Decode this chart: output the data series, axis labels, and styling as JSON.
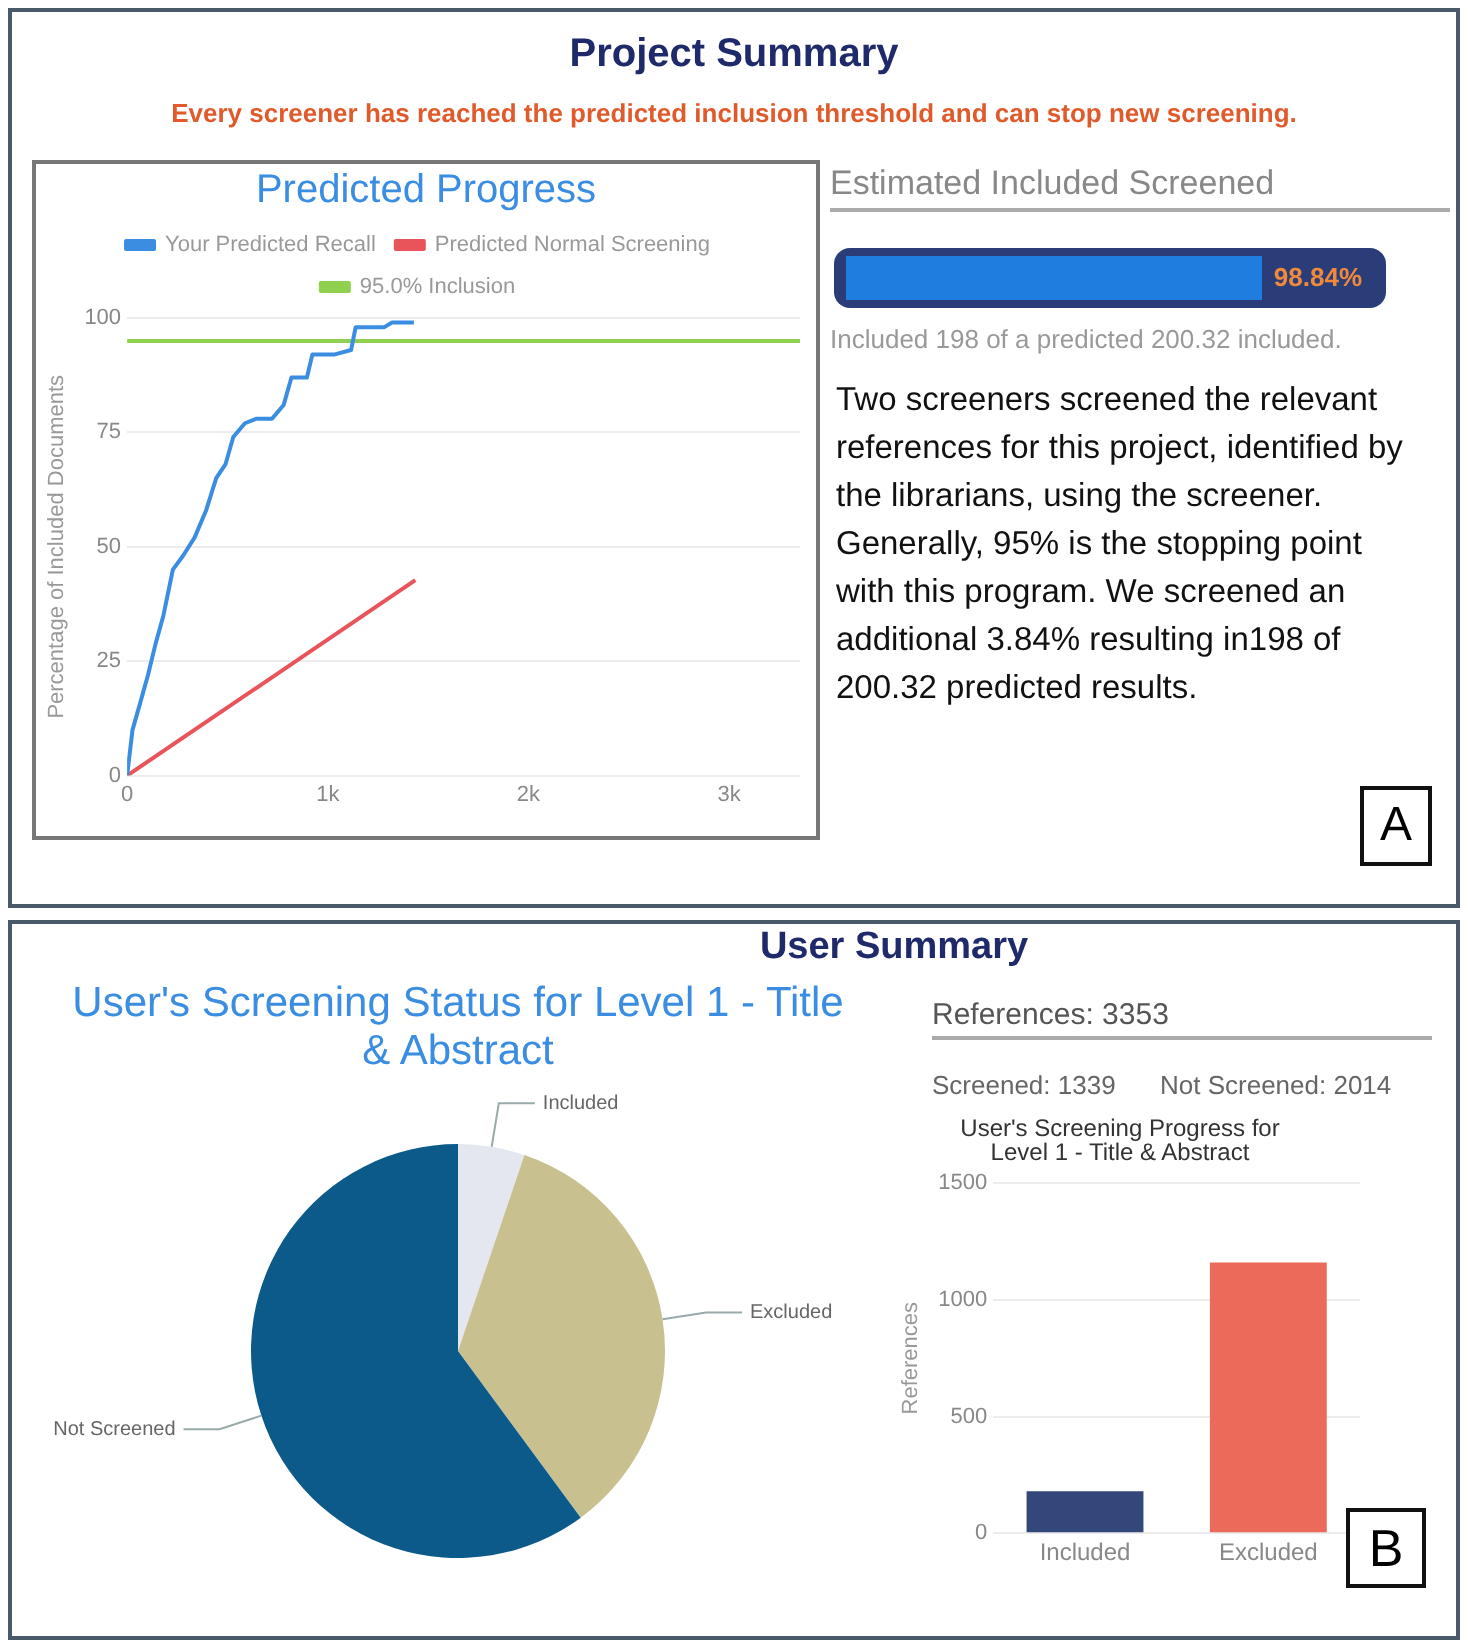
{
  "chart_data": [
    {
      "type": "other",
      "title": "Project Summary",
      "subtitle": "Every screener has reached the predicted inclusion threshold and can stop new screening."
    },
    {
      "type": "line",
      "title": "Predicted Progress",
      "ylabel": "Percentage of Included Documents",
      "xlim": [
        0,
        3353
      ],
      "ylim": [
        0,
        100
      ],
      "xticks": [
        0,
        {
          "value": 1000,
          "label": "1k"
        },
        {
          "value": 2000,
          "label": "2k"
        },
        {
          "value": 3000,
          "label": "3k"
        }
      ],
      "yticks": [
        0,
        25,
        50,
        75,
        100
      ],
      "grid": "y",
      "legend": "top",
      "marker": "none",
      "line_style": "solid",
      "series": [
        {
          "name": "Your Predicted Recall",
          "color": "#3a8de0",
          "x": [
            0,
            27,
            66,
            104,
            143,
            181,
            228,
            278,
            336,
            394,
            444,
            490,
            529,
            587,
            645,
            722,
            780,
            819,
            896,
            923,
            1031,
            1116,
            1139,
            1282,
            1320,
            1429
          ],
          "values": [
            0,
            10,
            16,
            22,
            29,
            35,
            45,
            48,
            52,
            58,
            65,
            68,
            74,
            77,
            78,
            78,
            81,
            87,
            87,
            92,
            92,
            93,
            98,
            98,
            99,
            99
          ]
        },
        {
          "name": "Predicted Normal Screening",
          "color": "#e8545a",
          "x": [
            0,
            1436
          ],
          "values": [
            0,
            42.7
          ]
        },
        {
          "name": "95.0% Inclusion",
          "color": "#8fd14f",
          "x": [
            0,
            3353
          ],
          "values": [
            95,
            95
          ]
        }
      ]
    },
    {
      "type": "other",
      "title": "Estimated Included Screened",
      "annotations": [
        "98.84%",
        "Included 198 of a predicted 200.32 included."
      ]
    },
    {
      "type": "other",
      "annotations": [
        "Two screeners screened the relevant references for this project, identified by the librarians, using the screener. Generally, 95% is the stopping point with this program. We screened an additional 3.84% resulting in198 of 200.32 predicted results.",
        "A"
      ]
    },
    {
      "type": "other",
      "title": "User Summary"
    },
    {
      "type": "pie",
      "title": "User's Screening Status for Level 1 - Title & Abstract",
      "categories": [
        "Included",
        "Excluded",
        "Not Screened"
      ],
      "values": [
        5.2,
        34.7,
        60.1
      ],
      "colors": [
        "#e4e7ef",
        "#c9c08f",
        "#0b5a8a"
      ],
      "legend": false
    },
    {
      "type": "other",
      "annotations": [
        "References: 3353",
        "Screened: 1339",
        "Not Screened: 2014"
      ]
    },
    {
      "type": "bar",
      "title": "User's Screening Progress for Level 1 - Title & Abstract",
      "ylabel": "References",
      "categories": [
        "Included",
        "Excluded"
      ],
      "values": [
        180,
        1160
      ],
      "colors": [
        "#34477a",
        "#ec6a5a"
      ],
      "ylim": [
        0,
        1500
      ],
      "yticks": [
        0,
        500,
        1000,
        1500
      ],
      "grid": "y",
      "annotations": [
        "B"
      ]
    }
  ]
}
